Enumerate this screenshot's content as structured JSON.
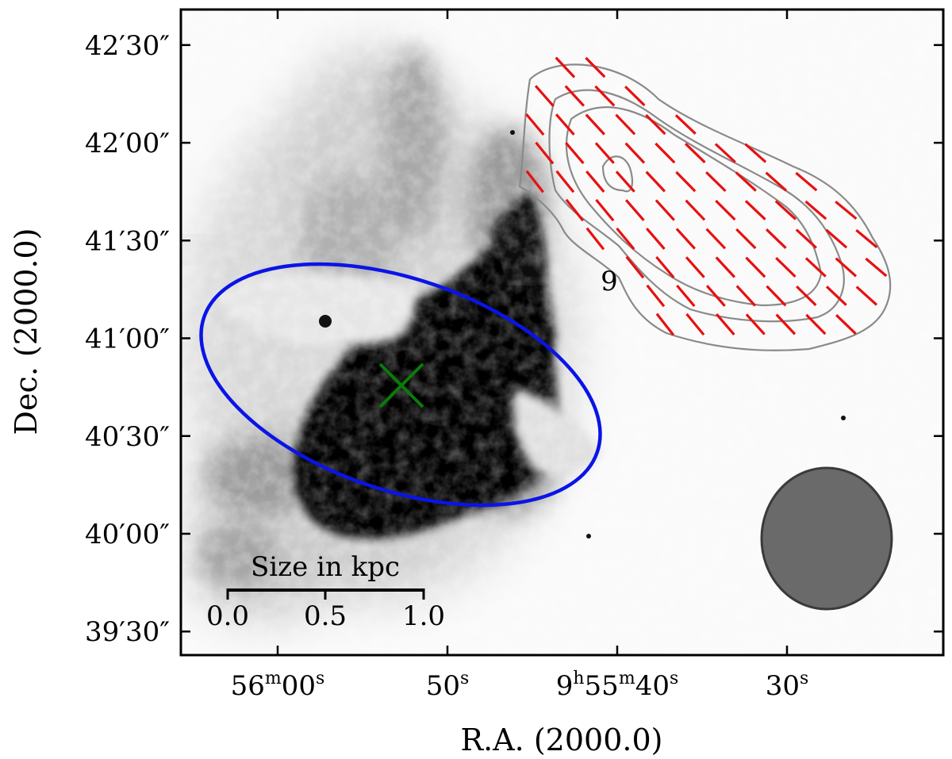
{
  "chart_data": {
    "type": "image",
    "xlabel": "R.A. (2000.0)",
    "ylabel": "Dec. (2000.0)",
    "x_ticks": [
      {
        "seconds": 60,
        "label": "56m00s",
        "parts": [
          {
            "t": "56"
          },
          {
            "t": "m",
            "sup": true
          },
          {
            "t": "00"
          },
          {
            "t": "s",
            "sup": true
          }
        ]
      },
      {
        "seconds": 50,
        "label": "50s",
        "parts": [
          {
            "t": "50"
          },
          {
            "t": "s",
            "sup": true
          }
        ]
      },
      {
        "seconds": 40,
        "label": "9h55m40s",
        "parts": [
          {
            "t": "9"
          },
          {
            "t": "h",
            "sup": true
          },
          {
            "t": "55"
          },
          {
            "t": "m",
            "sup": true
          },
          {
            "t": "40"
          },
          {
            "t": "s",
            "sup": true
          }
        ]
      },
      {
        "seconds": 30,
        "label": "30s",
        "parts": [
          {
            "t": "30"
          },
          {
            "t": "s",
            "sup": true
          }
        ]
      }
    ],
    "y_ticks": [
      {
        "arcsec": 150,
        "label": "42′30″"
      },
      {
        "arcsec": 120,
        "label": "42′00″"
      },
      {
        "arcsec": 90,
        "label": "41′30″"
      },
      {
        "arcsec": 60,
        "label": "41′00″"
      },
      {
        "arcsec": 30,
        "label": "40′30″"
      },
      {
        "arcsec": 0,
        "label": "40′00″"
      },
      {
        "arcsec": -30,
        "label": "39′30″"
      }
    ],
    "region_label": "9",
    "scale_bar": {
      "title": "Size in kpc",
      "ticks": [
        "0.0",
        "0.5",
        "1.0"
      ]
    },
    "colors": {
      "ellipse": "#0a14e6",
      "center_marker": "#0b7a0b",
      "polarization_vectors": "#e81010",
      "contours": "#8a8a8a",
      "beam": "#6a6a6a"
    }
  }
}
